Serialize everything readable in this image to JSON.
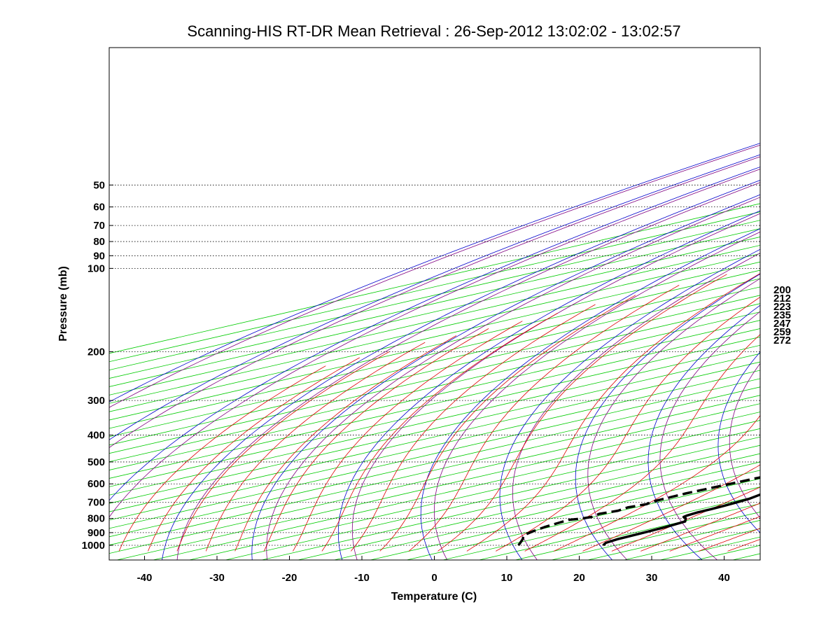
{
  "chart_data": {
    "type": "line",
    "diagram": "skew-T log-P",
    "title": "Scanning-HIS RT-DR Mean Retrieval : 26-Sep-2012 13:02:02 - 13:02:57",
    "xlabel": "Temperature (C)",
    "ylabel": "Pressure (mb)",
    "xlim": [
      -45,
      45
    ],
    "ylim": [
      1050,
      45
    ],
    "x_ticks": [
      -40,
      -30,
      -20,
      -10,
      0,
      10,
      20,
      30,
      40
    ],
    "y_ticks": [
      50,
      60,
      70,
      80,
      90,
      100,
      200,
      300,
      400,
      500,
      600,
      700,
      800,
      900,
      1000
    ],
    "grid": "dotted horizontal pressure lines",
    "mixing_ratio_labels": [
      "200",
      "212",
      "223",
      "235",
      "247",
      "259",
      "272"
    ],
    "background_colors": {
      "isotherms": "#00cc00",
      "dry_adiabats": "#0000cc",
      "moist_adiabats": "#dd0000",
      "background_purple": "#800080"
    },
    "series": [
      {
        "name": "Temperature",
        "style": "solid",
        "color": "#000000",
        "points": [
          [
            1000,
            23.3
          ],
          [
            980,
            22.2
          ],
          [
            950,
            21.6
          ],
          [
            900,
            21.3
          ],
          [
            860,
            21.0
          ],
          [
            820,
            20.3
          ],
          [
            800,
            18.6
          ],
          [
            790,
            17.4
          ],
          [
            780,
            17.0
          ],
          [
            760,
            16.6
          ],
          [
            740,
            16.5
          ],
          [
            720,
            16.3
          ],
          [
            700,
            16.0
          ],
          [
            680,
            15.6
          ],
          [
            650,
            14.3
          ],
          [
            620,
            13.2
          ],
          [
            600,
            12.2
          ],
          [
            550,
            10.9
          ],
          [
            500,
            9.6
          ],
          [
            450,
            8.1
          ],
          [
            400,
            6.4
          ],
          [
            380,
            5.2
          ],
          [
            350,
            3.2
          ],
          [
            320,
            1.2
          ],
          [
            300,
            -0.6
          ],
          [
            280,
            -2.7
          ],
          [
            260,
            -5.3
          ],
          [
            250,
            -6.6
          ],
          [
            240,
            -7.6
          ],
          [
            230,
            -8.2
          ],
          [
            220,
            -8.8
          ],
          [
            210,
            -9.6
          ],
          [
            200,
            -9.9
          ],
          [
            190,
            -9.8
          ],
          [
            180,
            -9.6
          ],
          [
            170,
            -9.0
          ],
          [
            160,
            -8.2
          ],
          [
            150,
            -6.8
          ],
          [
            140,
            -4.8
          ],
          [
            130,
            -2.3
          ],
          [
            120,
            0.6
          ],
          [
            110,
            3.4
          ],
          [
            100,
            5.7
          ],
          [
            90,
            8.4
          ],
          [
            80,
            12.0
          ],
          [
            70,
            17.7
          ],
          [
            60,
            24.4
          ],
          [
            50,
            31.4
          ],
          [
            45,
            34.7
          ]
        ]
      },
      {
        "name": "Dew Point",
        "style": "dashed",
        "color": "#000000",
        "points": [
          [
            1000,
            11.6
          ],
          [
            980,
            10.4
          ],
          [
            950,
            8.5
          ],
          [
            920,
            6.3
          ],
          [
            890,
            5.2
          ],
          [
            860,
            4.3
          ],
          [
            830,
            3.7
          ],
          [
            810,
            3.3
          ],
          [
            800,
            4.3
          ],
          [
            790,
            4.7
          ],
          [
            770,
            3.9
          ],
          [
            750,
            4.6
          ],
          [
            730,
            4.0
          ],
          [
            710,
            4.6
          ],
          [
            700,
            4.1
          ],
          [
            690,
            3.9
          ],
          [
            650,
            3.6
          ],
          [
            600,
            4.0
          ],
          [
            550,
            4.4
          ],
          [
            500,
            5.2
          ],
          [
            480,
            5.3
          ],
          [
            460,
            4.8
          ],
          [
            440,
            3.7
          ],
          [
            420,
            2.6
          ],
          [
            400,
            1.6
          ],
          [
            380,
            -0.6
          ],
          [
            350,
            -2.2
          ],
          [
            320,
            -4.2
          ],
          [
            300,
            -6.0
          ],
          [
            280,
            -7.8
          ],
          [
            260,
            -10.3
          ],
          [
            240,
            -11.7
          ],
          [
            230,
            -12.1
          ],
          [
            220,
            -13.8
          ],
          [
            210,
            -14.6
          ],
          [
            200,
            -14.8
          ],
          [
            190,
            -14.4
          ],
          [
            180,
            -14.2
          ],
          [
            170,
            -14.4
          ],
          [
            165,
            -14.8
          ],
          [
            155,
            -15.9
          ],
          [
            150,
            -16.7
          ],
          [
            145,
            -17.2
          ],
          [
            130,
            -17.9
          ],
          [
            120,
            -17.9
          ],
          [
            110,
            -16.2
          ],
          [
            100,
            -14.2
          ],
          [
            90,
            -11.9
          ],
          [
            80,
            -9.8
          ],
          [
            70,
            -7.2
          ],
          [
            60,
            -3.7
          ],
          [
            50,
            0.6
          ],
          [
            45,
            1.9
          ]
        ]
      }
    ]
  }
}
